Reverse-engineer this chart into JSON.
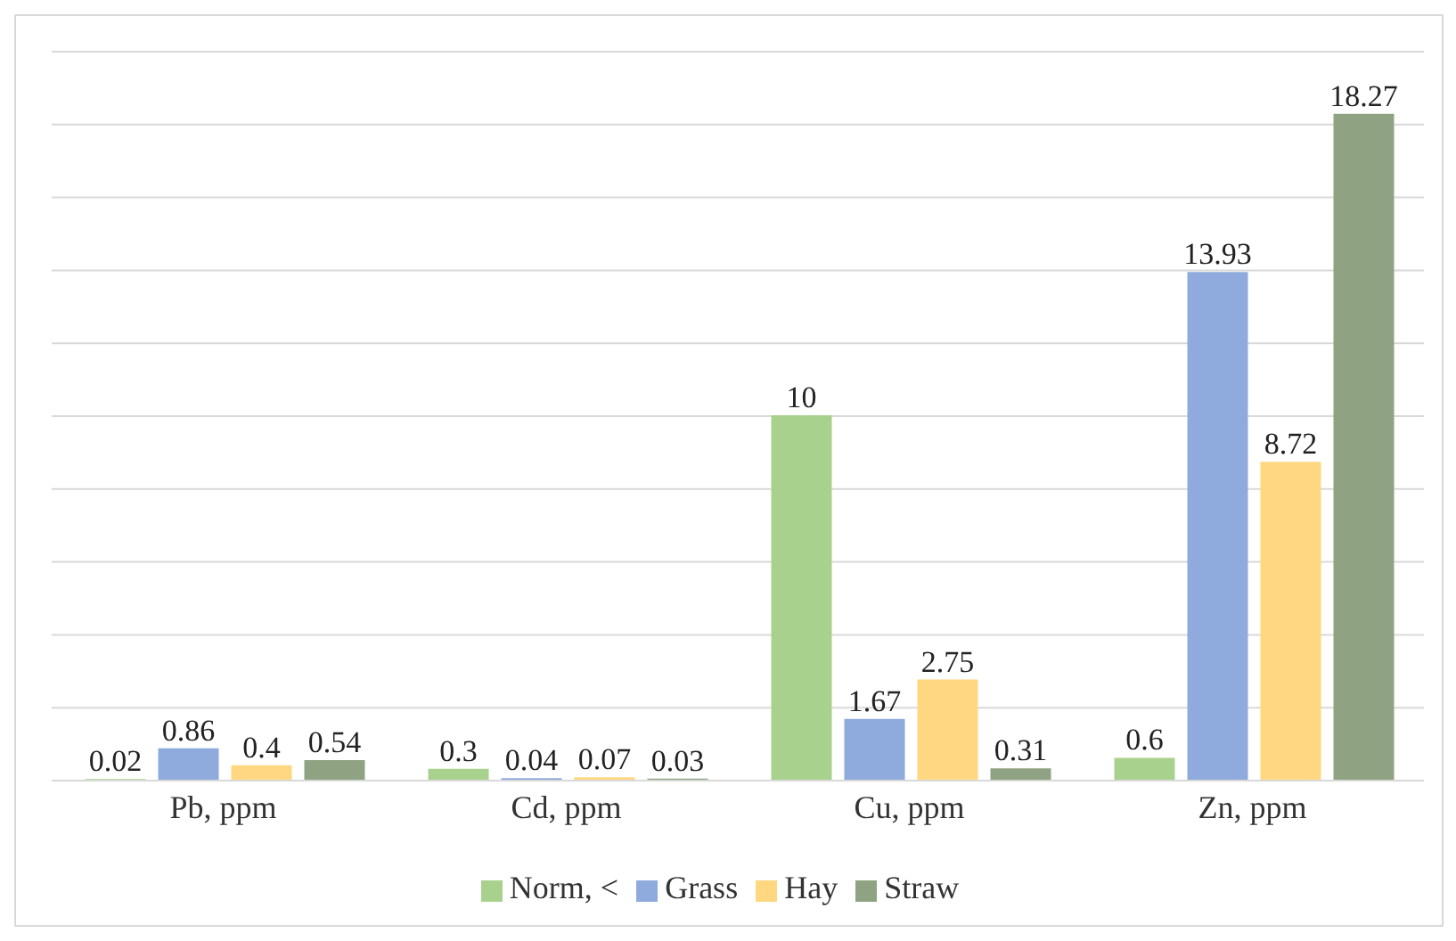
{
  "chart_data": {
    "type": "bar",
    "categories": [
      "Pb, ppm",
      "Cd, ppm",
      "Cu, ppm",
      "Zn, ppm"
    ],
    "series": [
      {
        "name": "Norm, <",
        "color": "#a9d18e",
        "values": [
          0.02,
          0.3,
          10,
          0.6
        ]
      },
      {
        "name": "Grass",
        "color": "#8faadc",
        "values": [
          0.86,
          0.04,
          1.67,
          13.93
        ]
      },
      {
        "name": "Hay",
        "color": "#ffd780",
        "values": [
          0.4,
          0.07,
          2.75,
          8.72
        ]
      },
      {
        "name": "Straw",
        "color": "#8fa382",
        "values": [
          0.54,
          0.03,
          0.31,
          18.27
        ]
      }
    ],
    "ylim": [
      0,
      20
    ],
    "yticks": [
      0,
      2,
      4,
      6,
      8,
      10,
      12,
      14,
      16,
      18,
      20
    ],
    "tick_labels": "x",
    "grid": "y",
    "legend": "bottom",
    "data_labels": true
  }
}
